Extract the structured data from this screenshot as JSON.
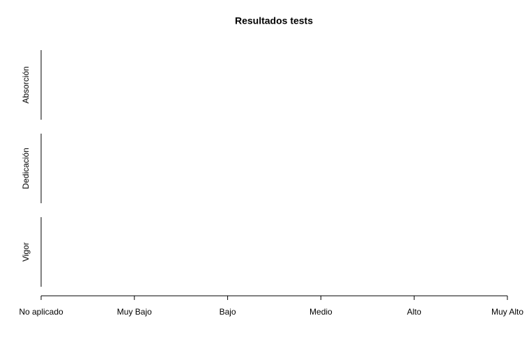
{
  "chart_data": {
    "type": "strip",
    "title": "Resultados tests",
    "categories": [
      "No aplicado",
      "Muy Bajo",
      "Bajo",
      "Medio",
      "Alto",
      "Muy Alto"
    ],
    "panels": [
      "Absorción",
      "Dedicación",
      "Vigor"
    ]
  }
}
